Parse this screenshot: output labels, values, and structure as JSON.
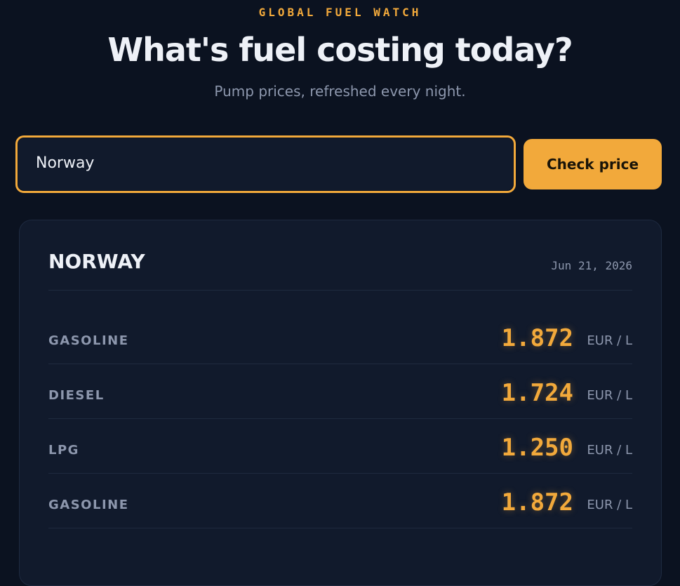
{
  "header": {
    "eyebrow": "GLOBAL FUEL WATCH",
    "title": "What's fuel costing today?",
    "subtitle": "Pump prices, refreshed every night."
  },
  "search": {
    "input_value": "Norway",
    "button": "Check price"
  },
  "result": {
    "country": "NORWAY",
    "date": "Jun 21, 2026",
    "rows": [
      {
        "fuel": "GASOLINE",
        "price": "1.872",
        "unit": "EUR / L"
      },
      {
        "fuel": "DIESEL",
        "price": "1.724",
        "unit": "EUR / L"
      },
      {
        "fuel": "LPG",
        "price": "1.250",
        "unit": "EUR / L"
      },
      {
        "fuel": "GASOLINE",
        "price": "1.872",
        "unit": "EUR / L"
      }
    ]
  }
}
